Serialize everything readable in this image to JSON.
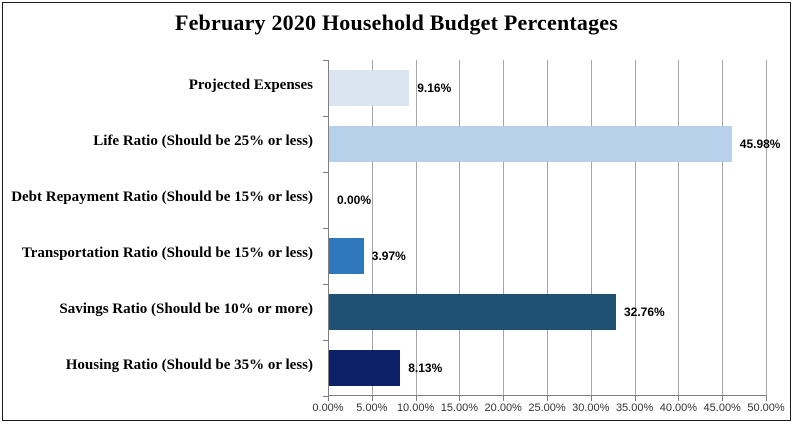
{
  "title": "February 2020 Household Budget Percentages",
  "chart_data": {
    "type": "bar",
    "orientation": "horizontal",
    "title": "February 2020 Household Budget Percentages",
    "categories": [
      "Projected Expenses",
      "Life Ratio (Should be 25% or less)",
      "Debt Repayment Ratio (Should be 15% or less)",
      "Transportation Ratio (Should be 15% or less)",
      "Savings Ratio (Should be 10% or more)",
      "Housing Ratio (Should be 35% or less)"
    ],
    "values": [
      9.16,
      45.98,
      0.0,
      3.97,
      32.76,
      8.13
    ],
    "data_labels": [
      "9.16%",
      "45.98%",
      "0.00%",
      "3.97%",
      "32.76%",
      "8.13%"
    ],
    "bar_colors": [
      "#dbe5f1",
      "#b8d1ea",
      "#2e79bd",
      "#2e79bd",
      "#1f5174",
      "#0c2167"
    ],
    "xlabel": "",
    "ylabel": "",
    "xlim": [
      0,
      50
    ],
    "x_tick_labels": [
      "0.00%",
      "5.00%",
      "10.00%",
      "15.00%",
      "20.00%",
      "25.00%",
      "30.00%",
      "35.00%",
      "40.00%",
      "45.00%",
      "50.00%"
    ],
    "grid": true,
    "legend": false,
    "gridline_color": "#a6a6a6",
    "axis_color": "#7f7f7f"
  }
}
